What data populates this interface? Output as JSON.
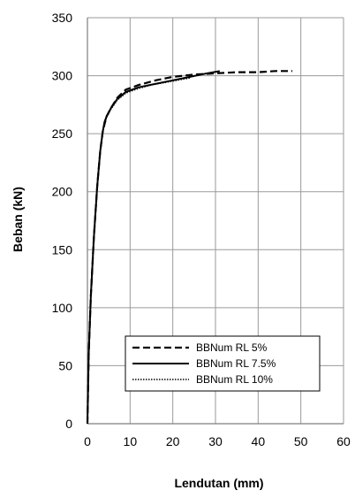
{
  "chart_data": {
    "type": "line",
    "title": "",
    "xlabel": "Lendutan (mm)",
    "ylabel": "Beban (kN)",
    "xlim": [
      0,
      60
    ],
    "ylim": [
      0,
      350
    ],
    "xticks": [
      0,
      10,
      20,
      30,
      40,
      50,
      60
    ],
    "yticks": [
      0,
      50,
      100,
      150,
      200,
      250,
      300,
      350
    ],
    "grid": true,
    "legend_position": "bottom-center",
    "series": [
      {
        "name": "BBNum RL 5%",
        "style": "dashed",
        "color": "#000000",
        "x": [
          0,
          0.3,
          0.8,
          1.5,
          2.3,
          3.0,
          3.6,
          4.0,
          4.5,
          5.5,
          7.0,
          9.0,
          12.0,
          16.0,
          20.0,
          25.0,
          30.0,
          35.0,
          40.0,
          44.0,
          48.0
        ],
        "y": [
          0,
          60,
          110,
          160,
          205,
          235,
          252,
          258,
          265,
          272,
          281,
          288,
          292,
          296,
          299,
          301,
          302,
          303,
          303,
          304,
          304
        ]
      },
      {
        "name": "BBNum RL 7.5%",
        "style": "solid",
        "color": "#000000",
        "x": [
          0,
          0.3,
          0.8,
          1.5,
          2.3,
          3.0,
          3.6,
          4.0,
          4.5,
          5.5,
          7.0,
          9.0,
          12.0,
          16.0,
          20.0,
          24.0,
          28.0,
          31.0
        ],
        "y": [
          0,
          60,
          110,
          160,
          205,
          235,
          252,
          260,
          265,
          272,
          280,
          286,
          290,
          293,
          296,
          299,
          302,
          304
        ]
      },
      {
        "name": "BBNum RL 10%",
        "style": "dotted",
        "color": "#000000",
        "x": [
          0,
          0.3,
          0.8,
          1.5,
          2.3,
          3.0,
          3.6,
          4.0,
          4.5,
          5.5,
          7.0,
          9.0,
          12.0,
          15.0,
          18.0,
          21.0,
          24.0
        ],
        "y": [
          0,
          60,
          110,
          160,
          205,
          235,
          252,
          258,
          264,
          271,
          279,
          285,
          289,
          292,
          294,
          296,
          298
        ]
      }
    ]
  }
}
